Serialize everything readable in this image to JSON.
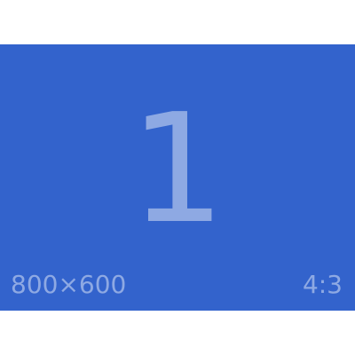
{
  "slide": {
    "number": "1",
    "dimensions": "800×600",
    "aspect_ratio": "4:3"
  },
  "colors": {
    "background": "#ffffff",
    "panel": "#3363cc",
    "text": "#8ea9e3"
  }
}
